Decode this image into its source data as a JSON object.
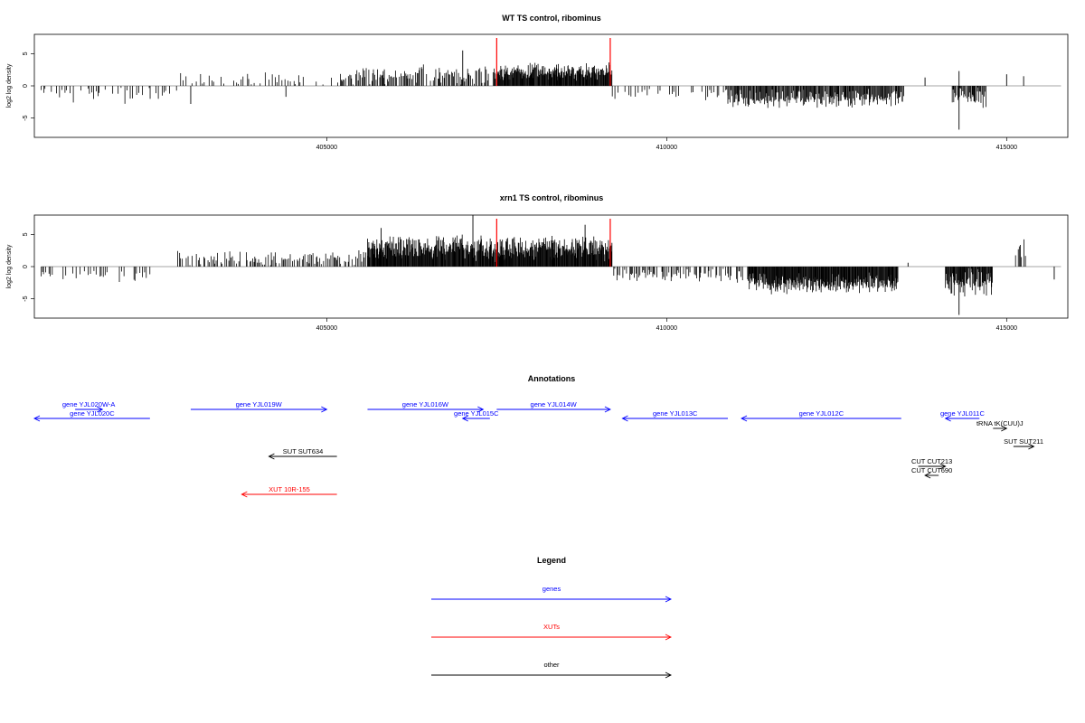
{
  "chart_data": [
    {
      "type": "bar",
      "title": "WT TS control, ribominus",
      "ylabel": "log2 log density",
      "xlabel": "",
      "xlim": [
        400700,
        415900
      ],
      "ylim": [
        -8,
        8
      ],
      "xticks": [
        405000,
        410000,
        415000
      ],
      "yticks": [
        5,
        0,
        -5
      ],
      "highlight_x": [
        407500,
        409170
      ],
      "highlight_color": "#ff0000",
      "seed": 7,
      "segments": [
        {
          "x0": 400800,
          "x1": 402800,
          "mean": -1.4,
          "spread": 0.9,
          "density": 0.45
        },
        {
          "x0": 402800,
          "x1": 405200,
          "mean": 0.9,
          "spread": 0.9,
          "density": 0.45
        },
        {
          "x0": 405200,
          "x1": 407500,
          "mean": 1.7,
          "spread": 1.2,
          "density": 0.8
        },
        {
          "x0": 407500,
          "x1": 409200,
          "mean": 2.2,
          "spread": 1.0,
          "density": 1.6
        },
        {
          "x0": 409200,
          "x1": 410900,
          "mean": -1.2,
          "spread": 0.7,
          "density": 0.45
        },
        {
          "x0": 410900,
          "x1": 413500,
          "mean": -2.0,
          "spread": 1.0,
          "density": 1.1
        },
        {
          "x0": 413500,
          "x1": 414200,
          "mean": 0,
          "spread": 0,
          "density": 0
        },
        {
          "x0": 414200,
          "x1": 414700,
          "mean": -1.8,
          "spread": 1.4,
          "density": 1.0
        }
      ],
      "spikes": [
        {
          "x": 403000,
          "y": -2.8
        },
        {
          "x": 404400,
          "y": -1.7
        },
        {
          "x": 407000,
          "y": 5.5
        },
        {
          "x": 413800,
          "y": 1.3
        },
        {
          "x": 414300,
          "y": -6.8
        },
        {
          "x": 414300,
          "y": 2.3
        },
        {
          "x": 415000,
          "y": 1.8
        },
        {
          "x": 415250,
          "y": 1.5
        }
      ]
    },
    {
      "type": "bar",
      "title": "xrn1 TS control, ribominus",
      "ylabel": "log2 log density",
      "xlabel": "",
      "xlim": [
        400700,
        415900
      ],
      "ylim": [
        -8,
        8
      ],
      "xticks": [
        405000,
        410000,
        415000
      ],
      "yticks": [
        5,
        0,
        -5
      ],
      "highlight_x": [
        407500,
        409170
      ],
      "highlight_color": "#ff0000",
      "seed": 19,
      "segments": [
        {
          "x0": 400800,
          "x1": 402400,
          "mean": -1.3,
          "spread": 0.8,
          "density": 0.5
        },
        {
          "x0": 402800,
          "x1": 405600,
          "mean": 1.3,
          "spread": 0.9,
          "density": 0.7
        },
        {
          "x0": 405600,
          "x1": 407500,
          "mean": 2.9,
          "spread": 1.4,
          "density": 1.6
        },
        {
          "x0": 407500,
          "x1": 409200,
          "mean": 2.8,
          "spread": 1.3,
          "density": 1.7
        },
        {
          "x0": 409200,
          "x1": 411200,
          "mean": -1.3,
          "spread": 0.8,
          "density": 0.7
        },
        {
          "x0": 411200,
          "x1": 413400,
          "mean": -2.6,
          "spread": 1.1,
          "density": 1.6
        },
        {
          "x0": 414100,
          "x1": 414800,
          "mean": -2.4,
          "spread": 1.6,
          "density": 1.4
        },
        {
          "x0": 415100,
          "x1": 415300,
          "mean": 2.8,
          "spread": 1.2,
          "density": 0.8
        }
      ],
      "spikes": [
        {
          "x": 407150,
          "y": 8.0
        },
        {
          "x": 408800,
          "y": 6.5
        },
        {
          "x": 413550,
          "y": 0.6
        },
        {
          "x": 414300,
          "y": -7.5
        },
        {
          "x": 415700,
          "y": -2.0
        },
        {
          "x": 405800,
          "y": 6.0
        }
      ]
    }
  ],
  "annotations": {
    "title": "Annotations",
    "features": [
      {
        "label": "gene YJL020W-A",
        "x0": 401300,
        "x1": 401700,
        "dir": "+",
        "row": 0,
        "cat": "gene"
      },
      {
        "label": "gene YJL020C",
        "x0": 400700,
        "x1": 402400,
        "dir": "-",
        "row": 1,
        "cat": "gene"
      },
      {
        "label": "gene YJL019W",
        "x0": 403000,
        "x1": 405000,
        "dir": "+",
        "row": 0,
        "cat": "gene"
      },
      {
        "label": "gene YJL016W",
        "x0": 405600,
        "x1": 407300,
        "dir": "+",
        "row": 0,
        "cat": "gene"
      },
      {
        "label": "gene YJL015C",
        "x0": 407000,
        "x1": 407400,
        "dir": "-",
        "row": 1,
        "cat": "gene"
      },
      {
        "label": "gene YJL014W",
        "x0": 407500,
        "x1": 409170,
        "dir": "+",
        "row": 0,
        "cat": "gene"
      },
      {
        "label": "gene YJL013C",
        "x0": 409350,
        "x1": 410900,
        "dir": "-",
        "row": 1,
        "cat": "gene"
      },
      {
        "label": "gene YJL012C",
        "x0": 411100,
        "x1": 413450,
        "dir": "-",
        "row": 1,
        "cat": "gene"
      },
      {
        "label": "gene YJL011C",
        "x0": 414100,
        "x1": 414600,
        "dir": "-",
        "row": 1,
        "cat": "gene"
      },
      {
        "label": "tRNA tK(CUU)J",
        "x0": 414800,
        "x1": 415000,
        "dir": "+",
        "row": 2,
        "cat": "other"
      },
      {
        "label": "SUT SUT211",
        "x0": 415100,
        "x1": 415400,
        "dir": "+",
        "row": 3,
        "cat": "other"
      },
      {
        "label": "SUT SUT634",
        "x0": 404150,
        "x1": 405150,
        "dir": "-",
        "row": 4,
        "cat": "other"
      },
      {
        "label": "CUT CUT213",
        "x0": 413700,
        "x1": 414100,
        "dir": "+",
        "row": 5,
        "cat": "other"
      },
      {
        "label": "CUT CUT690",
        "x0": 413800,
        "x1": 414000,
        "dir": "-",
        "row": 6,
        "cat": "other"
      },
      {
        "label": "XUT 10R-155",
        "x0": 403750,
        "x1": 405150,
        "dir": "-",
        "row": 7,
        "cat": "xut"
      }
    ]
  },
  "legend": {
    "title": "Legend",
    "items": [
      {
        "label": "genes",
        "color": "#0000ff",
        "cat": "gene"
      },
      {
        "label": "XUTs",
        "color": "#ff0000",
        "cat": "xut"
      },
      {
        "label": "other",
        "color": "#000000",
        "cat": "other"
      }
    ]
  },
  "colors": {
    "gene": "#0000ff",
    "xut": "#ff0000",
    "other": "#000000",
    "zero_line": "#888888"
  }
}
